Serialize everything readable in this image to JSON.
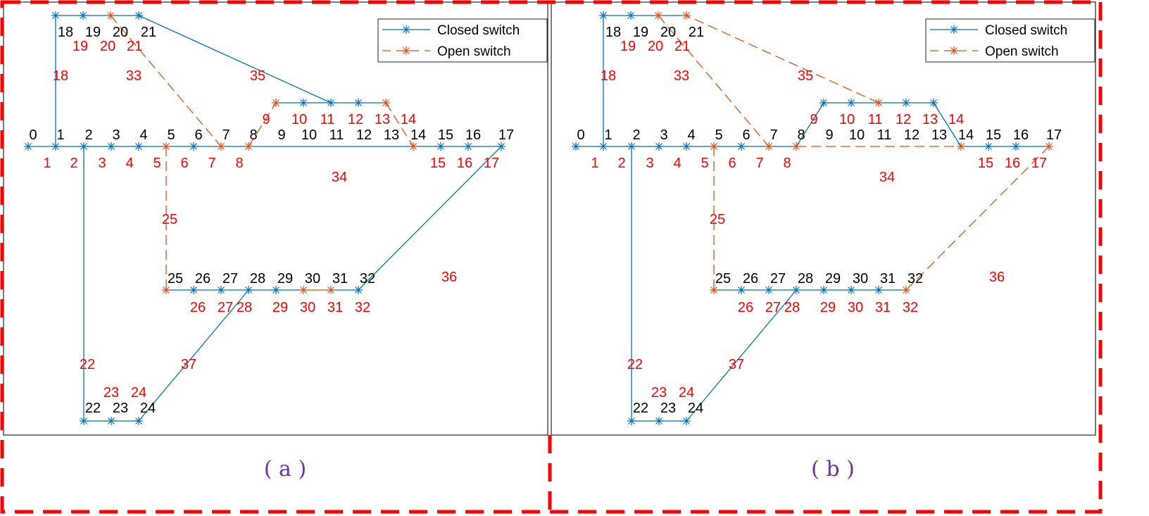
{
  "legend": {
    "closed": "Closed switch",
    "open": "Open switch"
  },
  "colors": {
    "closed": "#0072BD",
    "open": "#D95319",
    "branch_label": "#FF0000",
    "caption": "#7030A0",
    "border": "#FF0000"
  },
  "nodes": [
    "0",
    "1",
    "2",
    "3",
    "4",
    "5",
    "6",
    "7",
    "8",
    "9",
    "10",
    "11",
    "12",
    "13",
    "14",
    "15",
    "16",
    "17",
    "18",
    "19",
    "20",
    "21",
    "22",
    "23",
    "24",
    "25",
    "26",
    "27",
    "28",
    "29",
    "30",
    "31",
    "32"
  ],
  "branches": [
    {
      "id": "1",
      "from": 0,
      "to": 1
    },
    {
      "id": "2",
      "from": 1,
      "to": 2
    },
    {
      "id": "3",
      "from": 2,
      "to": 3
    },
    {
      "id": "4",
      "from": 3,
      "to": 4
    },
    {
      "id": "5",
      "from": 4,
      "to": 5
    },
    {
      "id": "6",
      "from": 5,
      "to": 6
    },
    {
      "id": "7",
      "from": 6,
      "to": 7
    },
    {
      "id": "8",
      "from": 7,
      "to": 8
    },
    {
      "id": "9",
      "from": 8,
      "to": 9
    },
    {
      "id": "10",
      "from": 9,
      "to": 10
    },
    {
      "id": "11",
      "from": 10,
      "to": 11
    },
    {
      "id": "12",
      "from": 11,
      "to": 12
    },
    {
      "id": "13",
      "from": 12,
      "to": 13
    },
    {
      "id": "14",
      "from": 13,
      "to": 14
    },
    {
      "id": "15",
      "from": 14,
      "to": 15
    },
    {
      "id": "16",
      "from": 15,
      "to": 16
    },
    {
      "id": "17",
      "from": 16,
      "to": 17
    },
    {
      "id": "18",
      "from": 1,
      "to": 18
    },
    {
      "id": "19",
      "from": 18,
      "to": 19
    },
    {
      "id": "20",
      "from": 19,
      "to": 20
    },
    {
      "id": "21",
      "from": 20,
      "to": 21
    },
    {
      "id": "22",
      "from": 2,
      "to": 22
    },
    {
      "id": "23",
      "from": 22,
      "to": 23
    },
    {
      "id": "24",
      "from": 23,
      "to": 24
    },
    {
      "id": "25",
      "from": 5,
      "to": 25
    },
    {
      "id": "26",
      "from": 25,
      "to": 26
    },
    {
      "id": "27",
      "from": 26,
      "to": 27
    },
    {
      "id": "28",
      "from": 27,
      "to": 28
    },
    {
      "id": "29",
      "from": 28,
      "to": 29
    },
    {
      "id": "30",
      "from": 29,
      "to": 30
    },
    {
      "id": "31",
      "from": 30,
      "to": 31
    },
    {
      "id": "32",
      "from": 31,
      "to": 32
    },
    {
      "id": "33",
      "from": 20,
      "to": 7
    },
    {
      "id": "34",
      "from": 8,
      "to": 14
    },
    {
      "id": "35",
      "from": 11,
      "to": 21
    },
    {
      "id": "36",
      "from": 17,
      "to": 32
    },
    {
      "id": "37",
      "from": 24,
      "to": 28
    }
  ],
  "panels": [
    {
      "caption": "( a )",
      "open_branches": [
        "9",
        "14",
        "25",
        "31",
        "33"
      ]
    },
    {
      "caption": "( b )",
      "open_branches": [
        "25",
        "33",
        "34",
        "35",
        "36"
      ]
    }
  ]
}
